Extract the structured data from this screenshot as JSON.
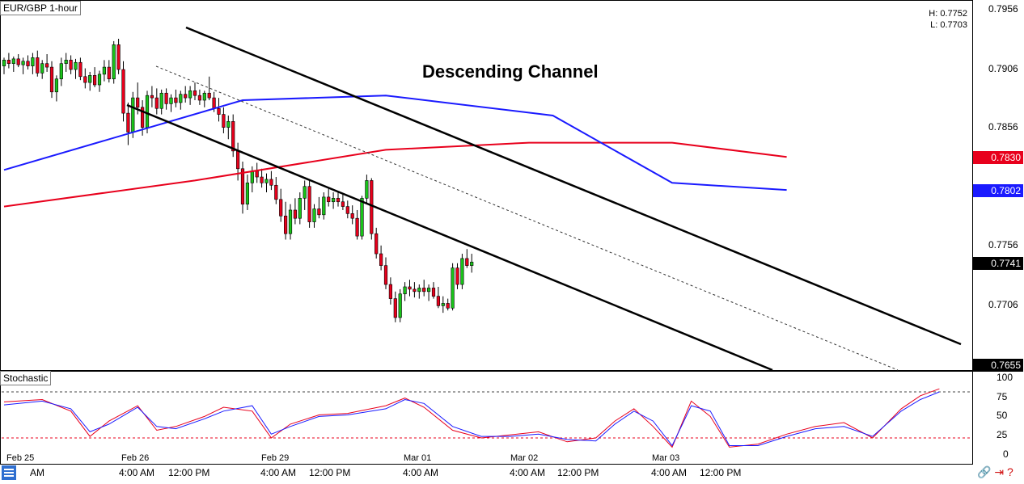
{
  "header": {
    "symbol_label": "EUR/GBP 1-hour",
    "high_label": "H: 0.7752",
    "low_label": "L: 0.7703",
    "overlay_title": "Descending Channel"
  },
  "indicator": {
    "label": "Stochastic"
  },
  "price_axis": {
    "ticks": [
      "0.7956",
      "0.7906",
      "0.7856",
      "0.7756",
      "0.7706"
    ],
    "tags": [
      {
        "label": "0.7830",
        "value": 0.783,
        "color": "#e8001c"
      },
      {
        "label": "0.7802",
        "value": 0.7802,
        "color": "#1a1aff"
      },
      {
        "label": "0.7741",
        "value": 0.7741,
        "color": "#000000"
      },
      {
        "label": "0.7655",
        "value": 0.7655,
        "color": "#000000"
      }
    ]
  },
  "stoch_axis": {
    "ticks": [
      "100",
      "75",
      "50",
      "25",
      "0"
    ]
  },
  "time_axis": {
    "dates": [
      "Feb 25",
      "Feb 26",
      "Feb 29",
      "Mar 01",
      "Mar 02",
      "Mar 03"
    ],
    "times": [
      "AM",
      "4:00 AM",
      "12:00 PM",
      "4:00 AM",
      "12:00 PM",
      "4:00 AM",
      "4:00 AM",
      "12:00 PM",
      "4:00 AM",
      "12:00 PM"
    ]
  },
  "colors": {
    "bull": "#19c419",
    "bear": "#e8001c",
    "ma_fast": "#1a1aff",
    "ma_slow": "#e8001c",
    "stoch_k": "#1a1aff",
    "stoch_d": "#e8001c"
  },
  "chart_data": {
    "type": "candlestick",
    "symbol": "EUR/GBP",
    "timeframe": "1-hour",
    "ylim": [
      0.765,
      0.796
    ],
    "candles": [
      [
        0.7907,
        0.7914,
        0.79,
        0.7912
      ],
      [
        0.7912,
        0.7918,
        0.7905,
        0.7909
      ],
      [
        0.7909,
        0.7915,
        0.7902,
        0.7913
      ],
      [
        0.7913,
        0.7917,
        0.7906,
        0.7908
      ],
      [
        0.7908,
        0.7914,
        0.79,
        0.7911
      ],
      [
        0.7911,
        0.7916,
        0.7904,
        0.7907
      ],
      [
        0.7907,
        0.7918,
        0.79,
        0.7914
      ],
      [
        0.7914,
        0.792,
        0.7898,
        0.7901
      ],
      [
        0.7901,
        0.7912,
        0.7896,
        0.7909
      ],
      [
        0.7909,
        0.7917,
        0.7902,
        0.7906
      ],
      [
        0.7906,
        0.7911,
        0.788,
        0.7885
      ],
      [
        0.7885,
        0.7899,
        0.7877,
        0.7896
      ],
      [
        0.7896,
        0.7914,
        0.789,
        0.7909
      ],
      [
        0.7909,
        0.7918,
        0.7902,
        0.7912
      ],
      [
        0.7912,
        0.7916,
        0.79,
        0.7904
      ],
      [
        0.7904,
        0.7913,
        0.7896,
        0.791
      ],
      [
        0.791,
        0.7914,
        0.7895,
        0.7898
      ],
      [
        0.7898,
        0.7905,
        0.7888,
        0.7893
      ],
      [
        0.7893,
        0.7902,
        0.7886,
        0.7899
      ],
      [
        0.7899,
        0.7906,
        0.7889,
        0.7891
      ],
      [
        0.7891,
        0.7903,
        0.7885,
        0.79
      ],
      [
        0.79,
        0.7912,
        0.7894,
        0.7906
      ],
      [
        0.7906,
        0.7912,
        0.7893,
        0.7896
      ],
      [
        0.7896,
        0.7928,
        0.7892,
        0.7925
      ],
      [
        0.7925,
        0.793,
        0.79,
        0.7904
      ],
      [
        0.7904,
        0.7911,
        0.786,
        0.7867
      ],
      [
        0.7867,
        0.7876,
        0.784,
        0.7851
      ],
      [
        0.7851,
        0.7885,
        0.7846,
        0.788
      ],
      [
        0.788,
        0.7893,
        0.7866,
        0.7872
      ],
      [
        0.7872,
        0.7878,
        0.7848,
        0.7855
      ],
      [
        0.7855,
        0.7886,
        0.785,
        0.7882
      ],
      [
        0.7882,
        0.789,
        0.7872,
        0.788
      ],
      [
        0.788,
        0.7888,
        0.7866,
        0.7871
      ],
      [
        0.7871,
        0.7887,
        0.7866,
        0.7884
      ],
      [
        0.7884,
        0.7888,
        0.787,
        0.7875
      ],
      [
        0.7875,
        0.7883,
        0.7868,
        0.788
      ],
      [
        0.788,
        0.7887,
        0.7872,
        0.7876
      ],
      [
        0.7876,
        0.7886,
        0.787,
        0.7883
      ],
      [
        0.7883,
        0.789,
        0.7876,
        0.788
      ],
      [
        0.788,
        0.789,
        0.7874,
        0.7886
      ],
      [
        0.7886,
        0.7893,
        0.7878,
        0.7882
      ],
      [
        0.7882,
        0.7887,
        0.7874,
        0.7878
      ],
      [
        0.7878,
        0.7886,
        0.7872,
        0.7884
      ],
      [
        0.7884,
        0.7898,
        0.7878,
        0.788
      ],
      [
        0.788,
        0.7885,
        0.7868,
        0.7871
      ],
      [
        0.7871,
        0.788,
        0.786,
        0.7866
      ],
      [
        0.7866,
        0.7872,
        0.785,
        0.7855
      ],
      [
        0.7855,
        0.7865,
        0.7845,
        0.786
      ],
      [
        0.786,
        0.7866,
        0.783,
        0.7835
      ],
      [
        0.7835,
        0.7842,
        0.781,
        0.782
      ],
      [
        0.782,
        0.7826,
        0.7782,
        0.779
      ],
      [
        0.779,
        0.7815,
        0.7785,
        0.7808
      ],
      [
        0.7808,
        0.7822,
        0.78,
        0.7818
      ],
      [
        0.7818,
        0.7825,
        0.7808,
        0.7813
      ],
      [
        0.7813,
        0.782,
        0.7804,
        0.7808
      ],
      [
        0.7808,
        0.7816,
        0.78,
        0.7811
      ],
      [
        0.7811,
        0.7818,
        0.7802,
        0.7806
      ],
      [
        0.7806,
        0.7813,
        0.779,
        0.7794
      ],
      [
        0.7794,
        0.7803,
        0.7775,
        0.778
      ],
      [
        0.778,
        0.7792,
        0.776,
        0.7765
      ],
      [
        0.7765,
        0.779,
        0.776,
        0.7785
      ],
      [
        0.7785,
        0.7795,
        0.7773,
        0.7778
      ],
      [
        0.7778,
        0.78,
        0.7773,
        0.7795
      ],
      [
        0.7795,
        0.781,
        0.7785,
        0.7805
      ],
      [
        0.7805,
        0.781,
        0.777,
        0.7775
      ],
      [
        0.7775,
        0.779,
        0.777,
        0.7786
      ],
      [
        0.7786,
        0.7796,
        0.7778,
        0.7781
      ],
      [
        0.7781,
        0.78,
        0.7777,
        0.7796
      ],
      [
        0.7796,
        0.7803,
        0.7788,
        0.7792
      ],
      [
        0.7792,
        0.78,
        0.7786,
        0.7795
      ],
      [
        0.7795,
        0.7801,
        0.7788,
        0.7792
      ],
      [
        0.7792,
        0.7799,
        0.7785,
        0.7788
      ],
      [
        0.7788,
        0.7793,
        0.7778,
        0.7782
      ],
      [
        0.7782,
        0.7789,
        0.7773,
        0.7778
      ],
      [
        0.7778,
        0.7785,
        0.776,
        0.7763
      ],
      [
        0.7763,
        0.7797,
        0.776,
        0.7795
      ],
      [
        0.7795,
        0.7815,
        0.779,
        0.781
      ],
      [
        0.781,
        0.7812,
        0.776,
        0.7765
      ],
      [
        0.7765,
        0.777,
        0.7744,
        0.7748
      ],
      [
        0.7748,
        0.7755,
        0.7734,
        0.7738
      ],
      [
        0.7738,
        0.7745,
        0.7718,
        0.7722
      ],
      [
        0.7722,
        0.7728,
        0.7705,
        0.771
      ],
      [
        0.771,
        0.7716,
        0.769,
        0.7694
      ],
      [
        0.7694,
        0.7718,
        0.769,
        0.7714
      ],
      [
        0.7714,
        0.7724,
        0.7708,
        0.772
      ],
      [
        0.772,
        0.7726,
        0.7712,
        0.7718
      ],
      [
        0.7718,
        0.7724,
        0.7711,
        0.7716
      ],
      [
        0.7716,
        0.7722,
        0.771,
        0.7719
      ],
      [
        0.7719,
        0.7726,
        0.7712,
        0.7716
      ],
      [
        0.7716,
        0.7722,
        0.7708,
        0.7719
      ],
      [
        0.7719,
        0.7724,
        0.771,
        0.7712
      ],
      [
        0.7712,
        0.772,
        0.7702,
        0.7704
      ],
      [
        0.7704,
        0.7712,
        0.7698,
        0.7706
      ],
      [
        0.7706,
        0.771,
        0.77,
        0.7702
      ],
      [
        0.7702,
        0.774,
        0.77,
        0.7736
      ],
      [
        0.7736,
        0.774,
        0.7718,
        0.7722
      ],
      [
        0.7722,
        0.7748,
        0.7718,
        0.7744
      ],
      [
        0.7744,
        0.7752,
        0.7736,
        0.7738
      ],
      [
        0.7738,
        0.7748,
        0.7732,
        0.7741
      ]
    ],
    "ma_fast": [
      [
        0,
        0.7819
      ],
      [
        50,
        0.7878
      ],
      [
        80,
        0.7882
      ],
      [
        115,
        0.7865
      ],
      [
        140,
        0.7808
      ],
      [
        164,
        0.7802
      ]
    ],
    "ma_slow": [
      [
        0,
        0.7788
      ],
      [
        40,
        0.781
      ],
      [
        80,
        0.7836
      ],
      [
        110,
        0.7842
      ],
      [
        140,
        0.7842
      ],
      [
        164,
        0.783
      ]
    ],
    "stochastic": {
      "levels": [
        80,
        20
      ],
      "ylim": [
        0,
        100
      ],
      "k": [
        [
          0,
          63
        ],
        [
          8,
          68
        ],
        [
          14,
          58
        ],
        [
          18,
          28
        ],
        [
          22,
          38
        ],
        [
          28,
          60
        ],
        [
          32,
          35
        ],
        [
          36,
          32
        ],
        [
          42,
          45
        ],
        [
          46,
          55
        ],
        [
          52,
          62
        ],
        [
          56,
          25
        ],
        [
          60,
          35
        ],
        [
          66,
          48
        ],
        [
          72,
          50
        ],
        [
          80,
          58
        ],
        [
          84,
          70
        ],
        [
          88,
          65
        ],
        [
          94,
          35
        ],
        [
          100,
          22
        ],
        [
          106,
          22
        ],
        [
          112,
          25
        ],
        [
          118,
          18
        ],
        [
          124,
          16
        ],
        [
          128,
          38
        ],
        [
          132,
          55
        ],
        [
          136,
          42
        ],
        [
          140,
          10
        ],
        [
          144,
          62
        ],
        [
          148,
          55
        ],
        [
          152,
          10
        ],
        [
          158,
          10
        ],
        [
          164,
          22
        ],
        [
          170,
          32
        ],
        [
          176,
          35
        ],
        [
          182,
          22
        ],
        [
          188,
          55
        ],
        [
          192,
          70
        ],
        [
          196,
          80
        ]
      ],
      "d": [
        [
          0,
          67
        ],
        [
          8,
          70
        ],
        [
          14,
          55
        ],
        [
          18,
          22
        ],
        [
          22,
          42
        ],
        [
          28,
          62
        ],
        [
          32,
          30
        ],
        [
          36,
          35
        ],
        [
          42,
          48
        ],
        [
          46,
          60
        ],
        [
          52,
          55
        ],
        [
          56,
          20
        ],
        [
          60,
          38
        ],
        [
          66,
          50
        ],
        [
          72,
          52
        ],
        [
          80,
          62
        ],
        [
          84,
          72
        ],
        [
          88,
          60
        ],
        [
          94,
          30
        ],
        [
          100,
          20
        ],
        [
          106,
          24
        ],
        [
          112,
          28
        ],
        [
          118,
          15
        ],
        [
          124,
          20
        ],
        [
          128,
          42
        ],
        [
          132,
          58
        ],
        [
          136,
          35
        ],
        [
          140,
          8
        ],
        [
          144,
          68
        ],
        [
          148,
          48
        ],
        [
          152,
          8
        ],
        [
          158,
          12
        ],
        [
          164,
          25
        ],
        [
          170,
          35
        ],
        [
          176,
          40
        ],
        [
          182,
          20
        ],
        [
          188,
          58
        ],
        [
          192,
          75
        ],
        [
          196,
          84
        ]
      ]
    }
  }
}
